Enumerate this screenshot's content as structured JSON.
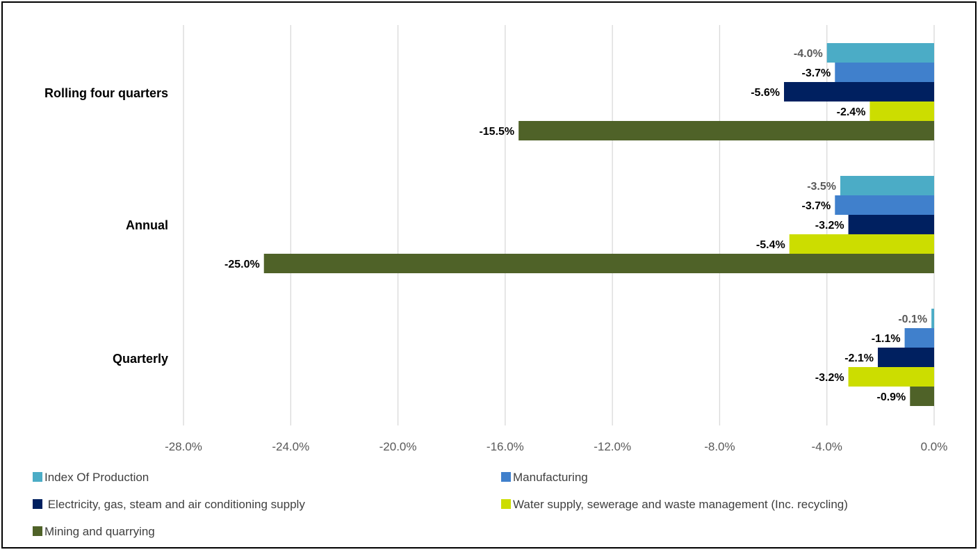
{
  "chart_data": {
    "type": "bar",
    "orientation": "horizontal",
    "categories": [
      "Rolling four quarters",
      "Annual",
      "Quarterly"
    ],
    "series": [
      {
        "name": "Index Of Production",
        "color": "#4BACC6",
        "values": [
          -4.0,
          -3.5,
          -0.1
        ],
        "labels": [
          "-4.0%",
          "-3.5%",
          "-0.1%"
        ]
      },
      {
        "name": "Manufacturing",
        "color": "#4080CC",
        "values": [
          -3.7,
          -3.7,
          -1.1
        ],
        "labels": [
          "-3.7%",
          "-3.7%",
          "-1.1%"
        ]
      },
      {
        "name": " Electricity, gas, steam and air conditioning supply",
        "color": "#002060",
        "values": [
          -5.6,
          -3.2,
          -2.1
        ],
        "labels": [
          "-5.6%",
          "-3.2%",
          "-2.1%"
        ]
      },
      {
        "name": "Water supply, sewerage and waste management (Inc. recycling)",
        "color": "#CCDD00",
        "values": [
          -2.4,
          -5.4,
          -3.2
        ],
        "labels": [
          "-2.4%",
          "-5.4%",
          "-3.2%"
        ]
      },
      {
        "name": "Mining and quarrying",
        "color": "#4F6228",
        "values": [
          -15.5,
          -25.0,
          -0.9
        ],
        "labels": [
          "-15.5%",
          "-25.0%",
          "-0.9%"
        ]
      }
    ],
    "xlim": [
      -28.0,
      0.0
    ],
    "xticks": [
      -28,
      -24,
      -20,
      -16,
      -12,
      -8,
      -4,
      0
    ],
    "xtick_labels": [
      "-28.0%",
      "-24.0%",
      "-20.0%",
      "-16.0%",
      "-12.0%",
      "-8.0%",
      "-4.0%",
      "0.0%"
    ],
    "grid": "vertical",
    "legend_position": "bottom"
  }
}
